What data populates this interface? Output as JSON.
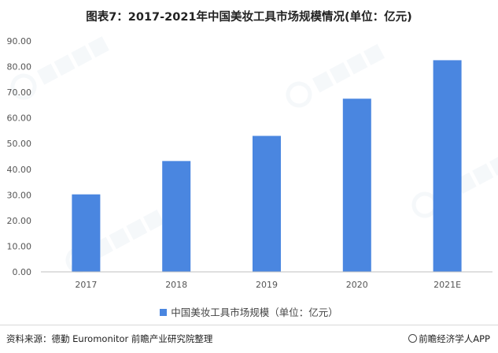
{
  "title": "图表7：2017-2021年中国美妆工具市场规模情况(单位：亿元)",
  "legend": {
    "label": "中国美妆工具市场规模（单位：亿元）"
  },
  "source": "资料来源：德勤 Euromonitor 前瞻产业研究院整理",
  "brand": "前瞻经济学人APP",
  "colors": {
    "bar": "#4a86e0",
    "axis": "#bfbfbf",
    "grid": "#ececec"
  },
  "chart_data": {
    "type": "bar",
    "categories": [
      "2017",
      "2018",
      "2019",
      "2020",
      "2021E"
    ],
    "series": [
      {
        "name": "中国美妆工具市场规模（单位：亿元）",
        "values": [
          30.2,
          43.2,
          53.0,
          67.5,
          82.5
        ]
      }
    ],
    "yticks": [
      "0.00",
      "10.00",
      "20.00",
      "30.00",
      "40.00",
      "50.00",
      "60.00",
      "70.00",
      "80.00",
      "90.00"
    ],
    "ylim": [
      0,
      90
    ],
    "grid": false,
    "legend_position": "bottom"
  }
}
